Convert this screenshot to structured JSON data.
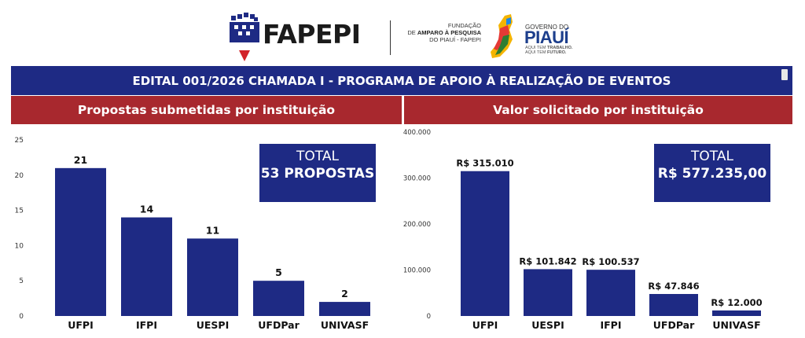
{
  "header": {
    "logo_text": "FAPEPI",
    "foundation_line1": "FUNDAÇÃO",
    "foundation_line2_prefix": "DE ",
    "foundation_line2_bold": "AMPARO À PESQUISA",
    "foundation_line3": "DO PIAUÍ - FAPEPI",
    "gov_small": "GOVERNO DO",
    "gov_big": "PIAUÍ",
    "gov_tag1_prefix": "AQUI TEM ",
    "gov_tag1_bold": "TRABALHO.",
    "gov_tag2_prefix": "AQUI TEM ",
    "gov_tag2_bold": "FUTURO."
  },
  "title": "EDITAL 001/2026 CHAMADA I - PROGRAMA DE APOIO À REALIZAÇÃO DE EVENTOS",
  "colors": {
    "navy": "#1e2a84",
    "red": "#a8282e"
  },
  "chart_data": [
    {
      "type": "bar",
      "title": "Propostas submetidas por instituição",
      "categories": [
        "UFPI",
        "IFPI",
        "UESPI",
        "UFDPar",
        "UNIVASF"
      ],
      "values": [
        21,
        14,
        11,
        5,
        2
      ],
      "value_labels": [
        "21",
        "14",
        "11",
        "5",
        "2"
      ],
      "yticks": [
        "0",
        "5",
        "10",
        "15",
        "20",
        "25"
      ],
      "ylim": [
        0,
        25
      ],
      "grid": false,
      "total_label": "TOTAL",
      "total_value": "53 PROPOSTAS"
    },
    {
      "type": "bar",
      "title": "Valor solicitado por instituição",
      "categories": [
        "UFPI",
        "UESPI",
        "IFPI",
        "UFDPar",
        "UNIVASF"
      ],
      "values": [
        315010,
        101842,
        100537,
        47846,
        12000
      ],
      "value_labels": [
        "R$ 315.010",
        "R$ 101.842",
        "R$ 100.537",
        "R$ 47.846",
        "R$ 12.000"
      ],
      "yticks": [
        "0",
        "100.000",
        "200.000",
        "300.000",
        "400.000"
      ],
      "ylim": [
        0,
        400000
      ],
      "grid": false,
      "total_label": "TOTAL",
      "total_value": "R$ 577.235,00"
    }
  ]
}
